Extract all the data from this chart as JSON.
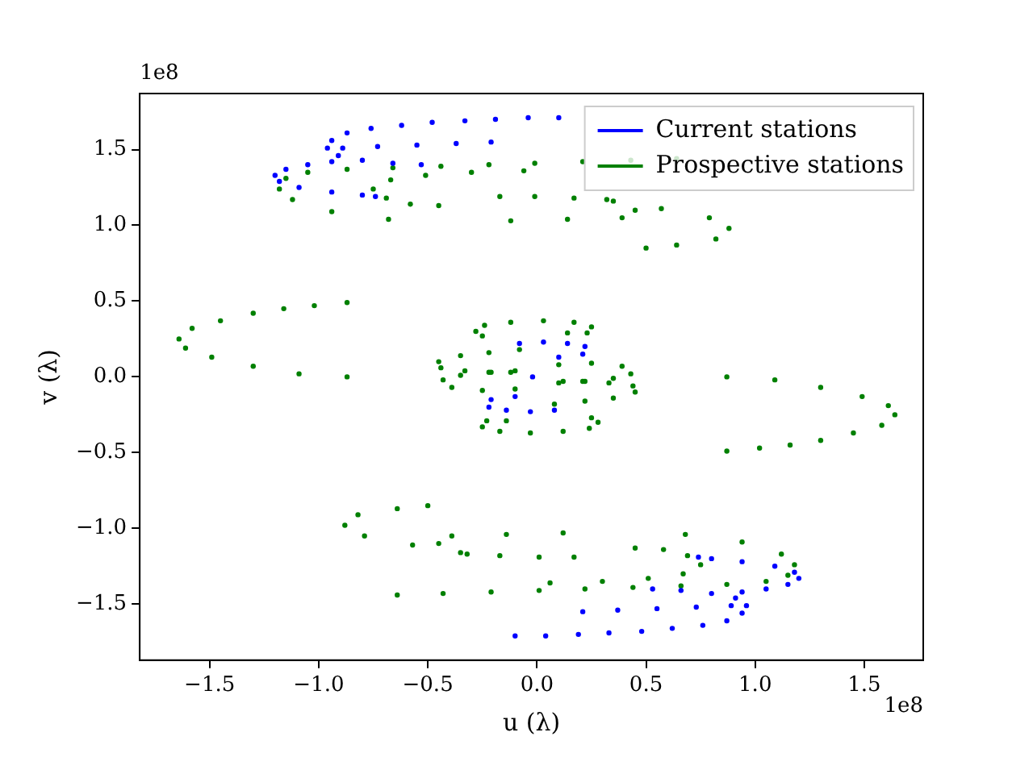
{
  "chart_data": {
    "type": "scatter",
    "xlabel": "u (λ)",
    "ylabel": "v (λ)",
    "annotations": [
      "1e8",
      "1e8"
    ],
    "xlim": [
      -1.82,
      1.77
    ],
    "ylim": [
      -1.87,
      1.87
    ],
    "xticks": [
      {
        "value": -1.5,
        "label": "−1.5"
      },
      {
        "value": -1.0,
        "label": "−1.0"
      },
      {
        "value": -0.5,
        "label": "−0.5"
      },
      {
        "value": 0,
        "label": "0.0"
      },
      {
        "value": 0.5,
        "label": "0.5"
      },
      {
        "value": 1.0,
        "label": "1.0"
      },
      {
        "value": 1.5,
        "label": "1.5"
      }
    ],
    "yticks": [
      {
        "value": -1.5,
        "label": "−1.5"
      },
      {
        "value": -1.0,
        "label": "−1.0"
      },
      {
        "value": -0.5,
        "label": "−0.5"
      },
      {
        "value": 0,
        "label": "0.0"
      },
      {
        "value": 0.5,
        "label": "0.5"
      },
      {
        "value": 1.0,
        "label": "1.0"
      },
      {
        "value": 1.5,
        "label": "1.5"
      }
    ],
    "grid": false,
    "legend": "top right",
    "marker": "circle",
    "series": [
      {
        "name": "Current stations",
        "color": "#0000ff",
        "x": [
          0.1,
          -0.04,
          -0.19,
          -0.33,
          -0.48,
          -0.62,
          -0.76,
          -0.87,
          -0.94,
          -0.96,
          -0.91,
          -0.8,
          -0.66,
          -0.53,
          -0.89,
          -0.73,
          -0.55,
          -0.37,
          -0.21,
          -0.94,
          -1.05,
          -1.15,
          -1.2,
          -1.18,
          -1.09,
          -0.94,
          -0.8,
          -0.74,
          -0.1,
          0.04,
          0.19,
          0.33,
          0.48,
          0.62,
          0.76,
          0.87,
          0.94,
          0.96,
          0.91,
          0.8,
          0.66,
          0.53,
          0.89,
          0.73,
          0.55,
          0.37,
          0.21,
          0.94,
          1.05,
          1.15,
          1.2,
          1.18,
          1.09,
          0.94,
          0.8,
          0.74,
          -0.02,
          -0.08,
          0.03,
          0.14,
          0.22,
          0.21,
          0.1,
          0.08,
          -0.03,
          -0.14,
          -0.22,
          -0.21,
          -0.1
        ],
        "values": [
          1.71,
          1.71,
          1.7,
          1.69,
          1.68,
          1.66,
          1.64,
          1.61,
          1.56,
          1.51,
          1.46,
          1.43,
          1.41,
          1.4,
          1.51,
          1.52,
          1.53,
          1.54,
          1.55,
          1.42,
          1.4,
          1.37,
          1.33,
          1.29,
          1.25,
          1.22,
          1.2,
          1.19,
          -1.71,
          -1.71,
          -1.7,
          -1.69,
          -1.68,
          -1.66,
          -1.64,
          -1.61,
          -1.56,
          -1.51,
          -1.46,
          -1.43,
          -1.41,
          -1.4,
          -1.51,
          -1.52,
          -1.53,
          -1.54,
          -1.55,
          -1.42,
          -1.4,
          -1.37,
          -1.33,
          -1.29,
          -1.25,
          -1.22,
          -1.2,
          -1.19,
          0,
          0.22,
          0.23,
          0.22,
          0.2,
          0.15,
          0.13,
          -0.22,
          -0.23,
          -0.22,
          -0.2,
          -0.15,
          -0.13
        ]
      },
      {
        "name": "Prospective stations",
        "color": "#008000",
        "x": [
          0.64,
          0.43,
          0.21,
          -0.01,
          -0.22,
          -0.44,
          -0.66,
          -0.87,
          -1.05,
          -1.15,
          -1.18,
          -1.12,
          -0.94,
          -0.68,
          -0.06,
          -0.3,
          -0.51,
          -0.67,
          -0.75,
          -0.69,
          -0.58,
          -0.45,
          -0.17,
          -0.01,
          0.17,
          0.35,
          0.45,
          0.39,
          0.14,
          -0.12,
          0.32,
          0.57,
          0.79,
          0.88,
          0.82,
          0.64,
          0.5,
          -0.87,
          -1.02,
          -1.16,
          -1.3,
          -1.45,
          -1.58,
          -1.64,
          -1.61,
          -1.49,
          -1.3,
          -1.09,
          -0.87,
          -0.25,
          -0.28,
          -0.24,
          -0.12,
          0.03,
          0.17,
          0.25,
          0.23,
          0.14,
          -0.08,
          -0.22,
          -0.35,
          -0.45,
          -0.44,
          -0.33,
          -0.22,
          -0.12,
          0.1,
          0.25,
          0.39,
          0.43,
          0.35,
          0.21,
          0.1,
          -0.64,
          -0.43,
          -0.21,
          0.01,
          0.22,
          0.44,
          0.66,
          0.87,
          1.05,
          1.15,
          1.18,
          1.12,
          0.94,
          0.68,
          0.06,
          0.3,
          0.51,
          0.67,
          0.75,
          0.69,
          0.58,
          0.45,
          0.17,
          0.01,
          -0.17,
          -0.35,
          -0.45,
          -0.39,
          -0.14,
          0.12,
          -0.32,
          -0.57,
          -0.79,
          -0.88,
          -0.82,
          -0.64,
          -0.5,
          0.87,
          1.02,
          1.16,
          1.3,
          1.45,
          1.58,
          1.64,
          1.61,
          1.49,
          1.3,
          1.09,
          0.87,
          0.25,
          0.28,
          0.24,
          0.12,
          -0.03,
          -0.17,
          -0.25,
          -0.23,
          -0.14,
          0.08,
          0.22,
          0.35,
          0.45,
          0.44,
          0.33,
          0.22,
          0.12,
          -0.1,
          -0.25,
          -0.39,
          -0.43,
          -0.35,
          -0.21,
          -0.1
        ],
        "values": [
          1.44,
          1.43,
          1.42,
          1.41,
          1.4,
          1.39,
          1.38,
          1.37,
          1.35,
          1.31,
          1.24,
          1.17,
          1.09,
          1.04,
          1.36,
          1.35,
          1.33,
          1.3,
          1.24,
          1.18,
          1.14,
          1.13,
          1.19,
          1.19,
          1.18,
          1.16,
          1.1,
          1.05,
          1.04,
          1.03,
          1.17,
          1.11,
          1.05,
          0.98,
          0.91,
          0.87,
          0.85,
          0.49,
          0.47,
          0.45,
          0.42,
          0.37,
          0.32,
          0.25,
          0.19,
          0.13,
          0.07,
          0.02,
          0.0,
          0.27,
          0.3,
          0.34,
          0.36,
          0.37,
          0.36,
          0.33,
          0.29,
          0.29,
          0.18,
          0.16,
          0.14,
          0.1,
          0.06,
          0.04,
          0.03,
          0.03,
          0.08,
          0.09,
          0.07,
          0.02,
          -0.01,
          -0.03,
          -0.04,
          -1.44,
          -1.43,
          -1.42,
          -1.41,
          -1.4,
          -1.39,
          -1.38,
          -1.37,
          -1.35,
          -1.31,
          -1.24,
          -1.17,
          -1.09,
          -1.04,
          -1.36,
          -1.35,
          -1.33,
          -1.3,
          -1.24,
          -1.18,
          -1.14,
          -1.13,
          -1.19,
          -1.19,
          -1.18,
          -1.16,
          -1.1,
          -1.05,
          -1.04,
          -1.03,
          -1.17,
          -1.11,
          -1.05,
          -0.98,
          -0.91,
          -0.87,
          -0.85,
          -0.49,
          -0.47,
          -0.45,
          -0.42,
          -0.37,
          -0.32,
          -0.25,
          -0.19,
          -0.13,
          -0.07,
          -0.02,
          0.0,
          -0.27,
          -0.3,
          -0.34,
          -0.36,
          -0.37,
          -0.36,
          -0.33,
          -0.29,
          -0.29,
          -0.18,
          -0.16,
          -0.14,
          -0.1,
          -0.06,
          -0.04,
          -0.03,
          -0.03,
          -0.08,
          -0.09,
          -0.07,
          -0.02,
          0.01,
          0.03,
          0.04
        ]
      }
    ]
  }
}
